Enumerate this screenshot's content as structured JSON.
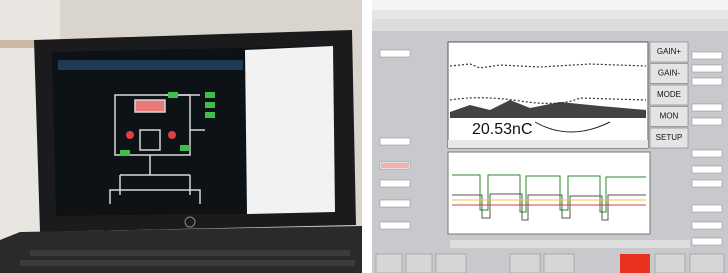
{
  "scope": {
    "charge": "20.53nC",
    "softkeys": [
      "GAIN+",
      "GAIN-",
      "MODE",
      "MON",
      "SETUP"
    ]
  }
}
